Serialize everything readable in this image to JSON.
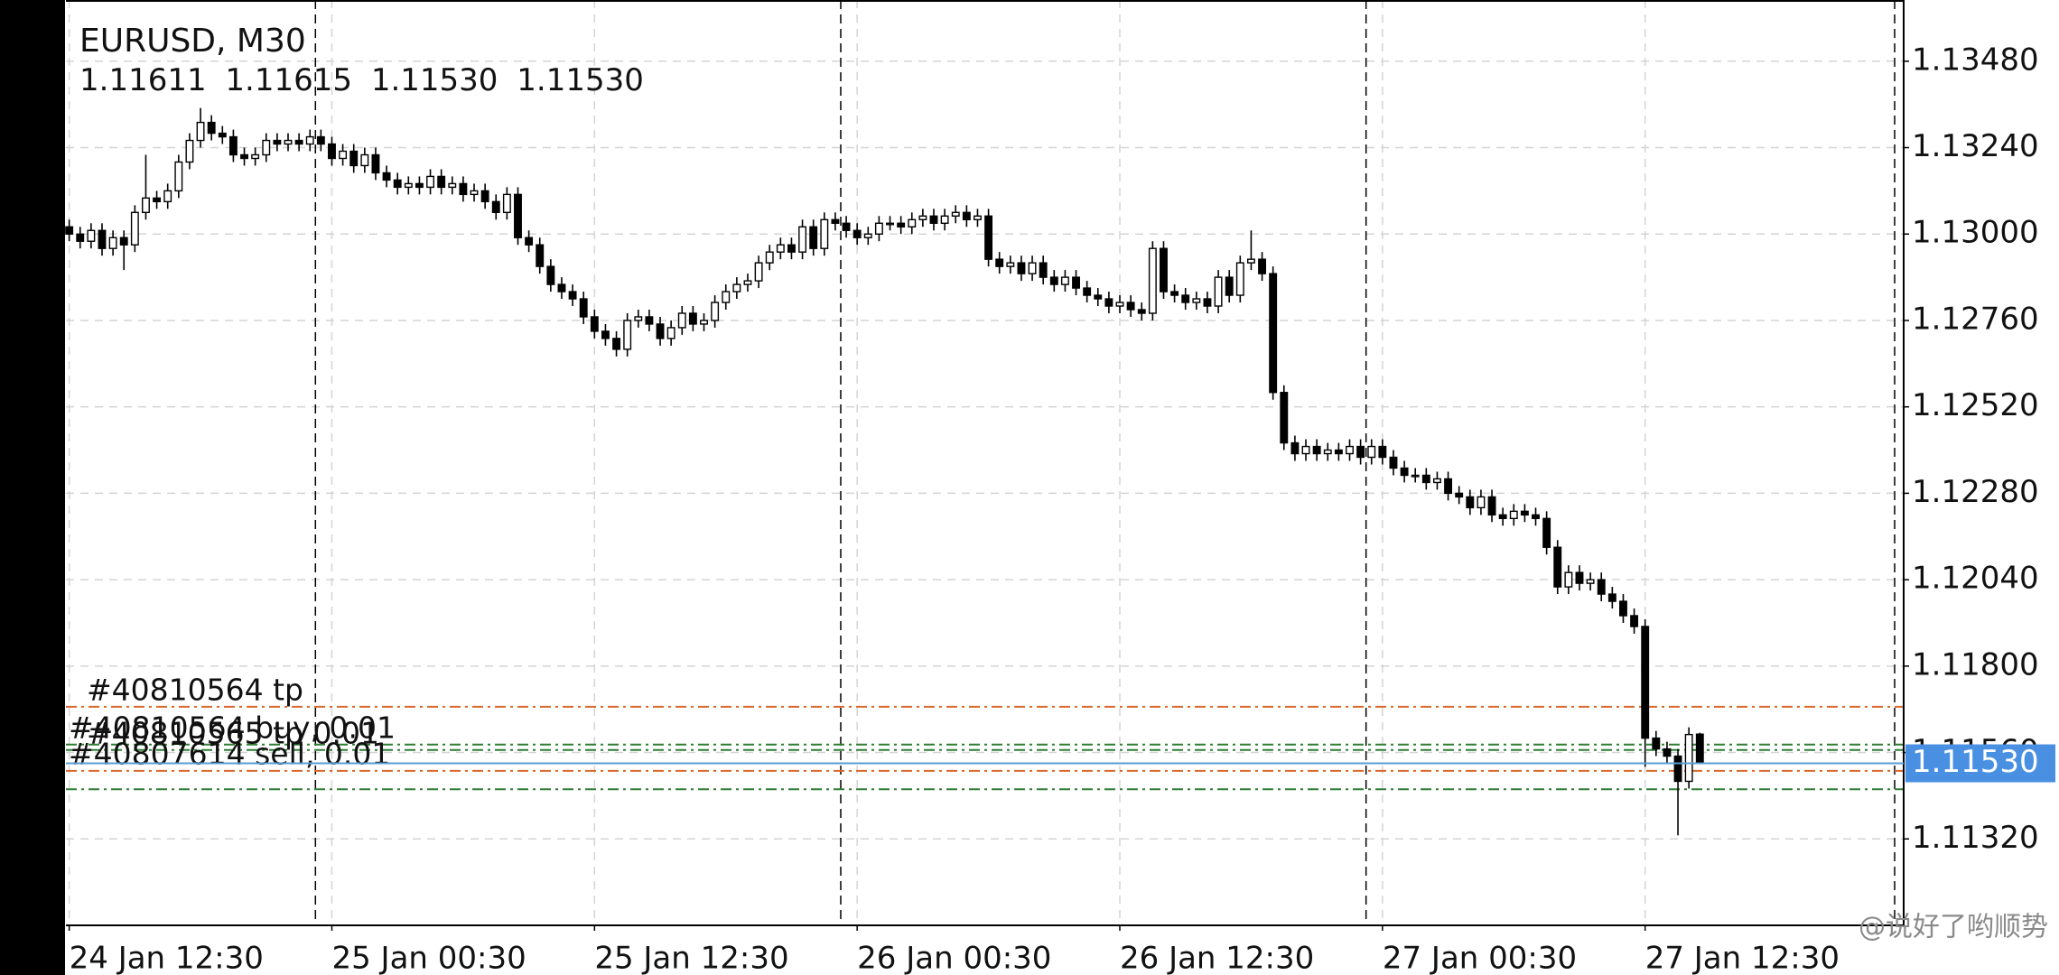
{
  "chart_data": {
    "type": "candlestick",
    "title": "EURUSD, M30",
    "ohlc_labels": [
      "1.11611",
      "1.11615",
      "1.11530",
      "1.11530"
    ],
    "open": [
      1.1302,
      1.13,
      1.1298,
      1.1301,
      1.1296,
      1.1299,
      1.1297,
      1.1306,
      1.131,
      1.1309,
      1.1312,
      1.132,
      1.1326,
      1.1331,
      1.1328,
      1.1327,
      1.1322,
      1.1321,
      1.1322,
      1.1326,
      1.1325,
      1.1326,
      1.1325,
      1.1327,
      1.1325,
      1.1321,
      1.1323,
      1.1319,
      1.1322,
      1.1317,
      1.1315,
      1.1313,
      1.1314,
      1.1313,
      1.1316,
      1.1313,
      1.1314,
      1.1311,
      1.1312,
      1.1309,
      1.1306,
      1.1311,
      1.1299,
      1.1297,
      1.1291,
      1.1286,
      1.1284,
      1.1282,
      1.1277,
      1.1273,
      1.1271,
      1.1268,
      1.1276,
      1.1277,
      1.1275,
      1.1271,
      1.1274,
      1.1278,
      1.1275,
      1.1276,
      1.1281,
      1.1284,
      1.1286,
      1.1287,
      1.1292,
      1.1295,
      1.1297,
      1.1295,
      1.1302,
      1.1296,
      1.1304,
      1.1303,
      1.1301,
      1.1299,
      1.13,
      1.1303,
      1.1303,
      1.1302,
      1.1304,
      1.1305,
      1.1303,
      1.1305,
      1.1306,
      1.1304,
      1.1305,
      1.1293,
      1.1291,
      1.1292,
      1.1289,
      1.1292,
      1.1288,
      1.1286,
      1.1288,
      1.1285,
      1.1283,
      1.1282,
      1.128,
      1.1281,
      1.1279,
      1.1278,
      1.1296,
      1.1284,
      1.1283,
      1.1281,
      1.1282,
      1.128,
      1.1288,
      1.1283,
      1.1292,
      1.1293,
      1.1289,
      1.1256,
      1.1242,
      1.1239,
      1.1241,
      1.1239,
      1.124,
      1.1239,
      1.1241,
      1.1238,
      1.1241,
      1.1238,
      1.1235,
      1.1233,
      1.1233,
      1.1231,
      1.1232,
      1.1228,
      1.1227,
      1.1224,
      1.1227,
      1.1222,
      1.1221,
      1.1223,
      1.1222,
      1.1221,
      1.1213,
      1.1202,
      1.1206,
      1.1203,
      1.1204,
      1.12,
      1.1198,
      1.1194,
      1.1191,
      1.116,
      1.1157,
      1.1155,
      1.1148,
      1.11611
    ],
    "high": [
      1.1304,
      1.1302,
      1.1303,
      1.1303,
      1.1301,
      1.1301,
      1.1308,
      1.1322,
      1.1312,
      1.1314,
      1.1322,
      1.1328,
      1.1335,
      1.1333,
      1.133,
      1.1329,
      1.1324,
      1.1324,
      1.1328,
      1.1328,
      1.1328,
      1.1328,
      1.1329,
      1.1329,
      1.1327,
      1.1325,
      1.1325,
      1.1324,
      1.1324,
      1.1319,
      1.1317,
      1.1316,
      1.1316,
      1.1318,
      1.1318,
      1.1316,
      1.1316,
      1.1314,
      1.1314,
      1.1311,
      1.1313,
      1.1313,
      1.1301,
      1.1299,
      1.1293,
      1.1288,
      1.1286,
      1.1284,
      1.1279,
      1.1275,
      1.1273,
      1.1278,
      1.1279,
      1.1279,
      1.1277,
      1.1276,
      1.128,
      1.128,
      1.1278,
      1.1283,
      1.1286,
      1.1288,
      1.1289,
      1.1294,
      1.1297,
      1.1299,
      1.1299,
      1.1304,
      1.1304,
      1.1306,
      1.1306,
      1.1305,
      1.1303,
      1.1302,
      1.1305,
      1.1305,
      1.1305,
      1.1306,
      1.1307,
      1.1307,
      1.1307,
      1.1308,
      1.1308,
      1.1307,
      1.1307,
      1.1295,
      1.1294,
      1.1294,
      1.1294,
      1.1294,
      1.129,
      1.129,
      1.129,
      1.1287,
      1.1285,
      1.1284,
      1.1283,
      1.1283,
      1.1281,
      1.1298,
      1.1298,
      1.1286,
      1.1285,
      1.1284,
      1.1284,
      1.129,
      1.129,
      1.1294,
      1.1301,
      1.1295,
      1.1291,
      1.1258,
      1.1244,
      1.1243,
      1.1243,
      1.1242,
      1.1242,
      1.1243,
      1.1243,
      1.1243,
      1.1243,
      1.124,
      1.1237,
      1.1235,
      1.1235,
      1.1234,
      1.1234,
      1.123,
      1.1229,
      1.1229,
      1.1229,
      1.1224,
      1.1225,
      1.1225,
      1.1224,
      1.1223,
      1.1215,
      1.1208,
      1.1208,
      1.1206,
      1.1206,
      1.1202,
      1.12,
      1.1196,
      1.1193,
      1.1162,
      1.1159,
      1.1157,
      1.1163,
      1.11615
    ],
    "low": [
      1.1298,
      1.1296,
      1.1296,
      1.1294,
      1.1294,
      1.129,
      1.1295,
      1.1304,
      1.1307,
      1.1307,
      1.131,
      1.1318,
      1.1324,
      1.1326,
      1.1325,
      1.132,
      1.1319,
      1.1319,
      1.132,
      1.1323,
      1.1323,
      1.1323,
      1.1323,
      1.1323,
      1.1319,
      1.1319,
      1.1317,
      1.1317,
      1.1315,
      1.1313,
      1.1311,
      1.1311,
      1.1311,
      1.1311,
      1.1311,
      1.1311,
      1.1309,
      1.1309,
      1.1307,
      1.1304,
      1.1304,
      1.1297,
      1.1295,
      1.1289,
      1.1284,
      1.1282,
      1.128,
      1.1275,
      1.1271,
      1.1269,
      1.1266,
      1.1266,
      1.1274,
      1.1273,
      1.1269,
      1.1269,
      1.1272,
      1.1273,
      1.1273,
      1.1274,
      1.1279,
      1.1282,
      1.1284,
      1.1285,
      1.129,
      1.1293,
      1.1293,
      1.1293,
      1.1294,
      1.1294,
      1.1301,
      1.1299,
      1.1297,
      1.1297,
      1.1298,
      1.1301,
      1.13,
      1.13,
      1.1302,
      1.1301,
      1.1301,
      1.1303,
      1.1302,
      1.1302,
      1.1291,
      1.1289,
      1.1289,
      1.1287,
      1.1287,
      1.1286,
      1.1284,
      1.1284,
      1.1283,
      1.1281,
      1.128,
      1.1278,
      1.1278,
      1.1277,
      1.1276,
      1.1276,
      1.1282,
      1.1281,
      1.1279,
      1.1279,
      1.1278,
      1.1278,
      1.1281,
      1.1281,
      1.129,
      1.1287,
      1.1254,
      1.124,
      1.1237,
      1.1237,
      1.1237,
      1.1237,
      1.1237,
      1.1237,
      1.1236,
      1.1236,
      1.1236,
      1.1233,
      1.1231,
      1.1231,
      1.1229,
      1.1229,
      1.1226,
      1.1225,
      1.1222,
      1.1222,
      1.122,
      1.1219,
      1.1219,
      1.122,
      1.1219,
      1.1211,
      1.12,
      1.12,
      1.1201,
      1.1201,
      1.1198,
      1.1196,
      1.1192,
      1.1189,
      1.1152,
      1.1155,
      1.1153,
      1.1133,
      1.1146,
      1.1153
    ],
    "close": [
      1.13,
      1.1298,
      1.1301,
      1.1296,
      1.1299,
      1.1297,
      1.1306,
      1.131,
      1.1309,
      1.1312,
      1.132,
      1.1326,
      1.1331,
      1.1328,
      1.1327,
      1.1322,
      1.1321,
      1.1322,
      1.1326,
      1.1325,
      1.1326,
      1.1325,
      1.1327,
      1.1325,
      1.1321,
      1.1323,
      1.1319,
      1.1322,
      1.1317,
      1.1315,
      1.1313,
      1.1314,
      1.1313,
      1.1316,
      1.1313,
      1.1314,
      1.1311,
      1.1312,
      1.1309,
      1.1306,
      1.1311,
      1.1299,
      1.1297,
      1.1291,
      1.1286,
      1.1284,
      1.1282,
      1.1277,
      1.1273,
      1.1271,
      1.1268,
      1.1276,
      1.1277,
      1.1275,
      1.1271,
      1.1274,
      1.1278,
      1.1275,
      1.1276,
      1.1281,
      1.1284,
      1.1286,
      1.1287,
      1.1292,
      1.1295,
      1.1297,
      1.1295,
      1.1302,
      1.1296,
      1.1304,
      1.1303,
      1.1301,
      1.1299,
      1.13,
      1.1303,
      1.1303,
      1.1302,
      1.1304,
      1.1305,
      1.1303,
      1.1305,
      1.1306,
      1.1304,
      1.1305,
      1.1293,
      1.1291,
      1.1292,
      1.1289,
      1.1292,
      1.1288,
      1.1286,
      1.1288,
      1.1285,
      1.1283,
      1.1282,
      1.128,
      1.1281,
      1.1279,
      1.1278,
      1.1296,
      1.1284,
      1.1283,
      1.1281,
      1.1282,
      1.128,
      1.1288,
      1.1283,
      1.1292,
      1.1293,
      1.1289,
      1.1256,
      1.1242,
      1.1239,
      1.1241,
      1.1239,
      1.124,
      1.1239,
      1.1241,
      1.1238,
      1.1241,
      1.1238,
      1.1235,
      1.1233,
      1.1233,
      1.1231,
      1.1232,
      1.1228,
      1.1227,
      1.1224,
      1.1227,
      1.1222,
      1.1221,
      1.1223,
      1.1222,
      1.1221,
      1.1213,
      1.1202,
      1.1206,
      1.1203,
      1.1204,
      1.12,
      1.1198,
      1.1194,
      1.1191,
      1.116,
      1.1157,
      1.1155,
      1.1148,
      1.1161,
      1.1153
    ],
    "xlim": [
      -0.3,
      166.8
    ],
    "xticks": [
      {
        "value": 0,
        "label": "24 Jan 12:30"
      },
      {
        "value": 24,
        "label": "25 Jan 00:30"
      },
      {
        "value": 48,
        "label": "25 Jan 12:30"
      },
      {
        "value": 72,
        "label": "26 Jan 00:30"
      },
      {
        "value": 96,
        "label": "26 Jan 12:30"
      },
      {
        "value": 120,
        "label": "27 Jan 00:30"
      },
      {
        "value": 144,
        "label": "27 Jan 12:30"
      }
    ],
    "period_separators": [
      22.5,
      70.5,
      118.5
    ],
    "ylim": [
      1.1108,
      1.1365
    ],
    "yticks": [
      {
        "value": 1.1348,
        "label": "1.13480"
      },
      {
        "value": 1.1324,
        "label": "1.13240"
      },
      {
        "value": 1.13,
        "label": "1.13000"
      },
      {
        "value": 1.1276,
        "label": "1.12760"
      },
      {
        "value": 1.1252,
        "label": "1.12520"
      },
      {
        "value": 1.1228,
        "label": "1.12280"
      },
      {
        "value": 1.1204,
        "label": "1.12040"
      },
      {
        "value": 1.118,
        "label": "1.11800"
      },
      {
        "value": 1.1156,
        "label": "1.11560"
      },
      {
        "value": 1.1132,
        "label": "1.11320"
      }
    ],
    "grid": true,
    "current_price": {
      "value": 1.1153,
      "label": "1.11530"
    },
    "order_lines": [
      {
        "label": "#40810564 tp",
        "price": 1.11687,
        "color": "#d9682a"
      },
      {
        "label": "#40810564 buy, 0.01",
        "price": 1.11582,
        "color": "#2e7d32"
      },
      {
        "label": "#40810565 tp 0.01",
        "price": 1.11567,
        "color": "#2e7d32"
      },
      {
        "label": "#40807614 sell, 0.01",
        "price": 1.11509,
        "color": "#d9682a"
      },
      {
        "price": 1.11458,
        "color": "#2e7d32"
      }
    ],
    "watermark": "@说好了哟顺势"
  }
}
